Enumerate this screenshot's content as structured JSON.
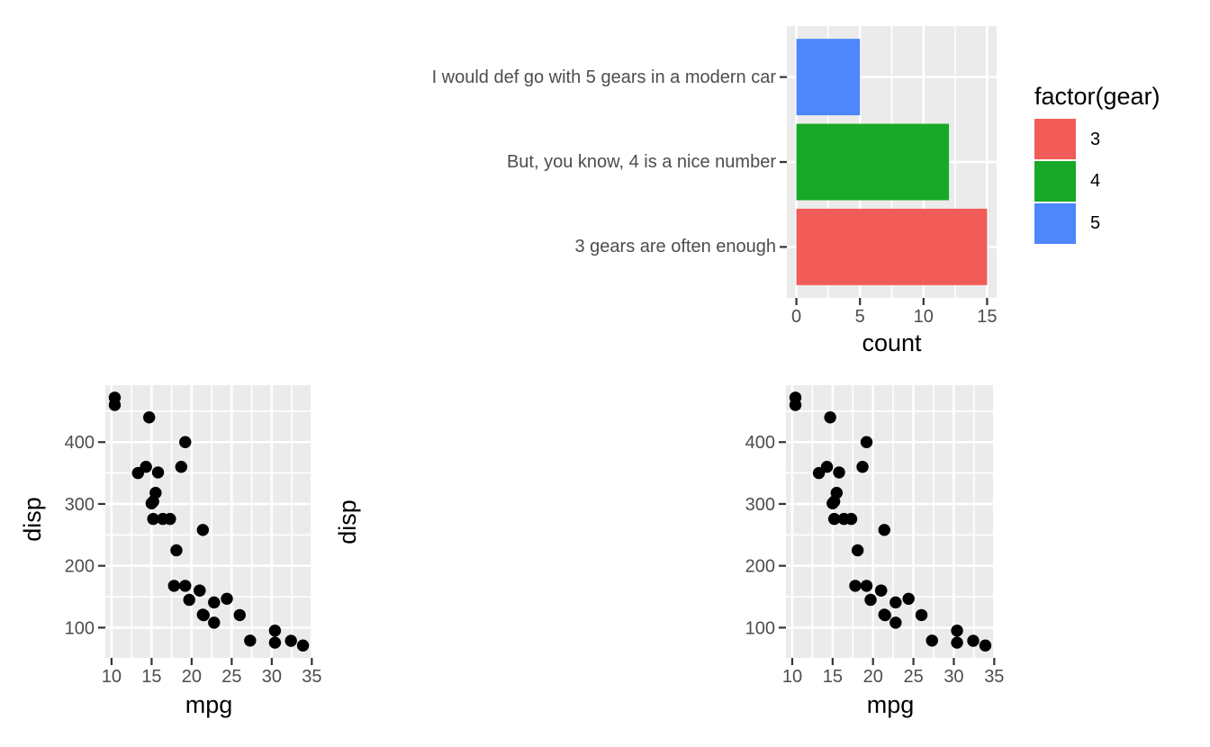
{
  "figure": {
    "background": "#FFFFFF",
    "theme": {
      "panel_bg": "#EBEBEB",
      "grid_color": "#FFFFFF",
      "tick_color": "#333333",
      "axis_text_color": "#4D4D4D",
      "title_color": "#000000",
      "point_color": "#000000"
    }
  },
  "chart_data": [
    {
      "id": "gear-bar-chart",
      "type": "bar",
      "orientation": "horizontal",
      "xlabel": "count",
      "categories": [
        "I would def go with 5 gears in a modern car",
        "But, you know, 4 is a nice number",
        "3 gears are often enough"
      ],
      "values": [
        5,
        12,
        15
      ],
      "bar_colors": [
        "#4E86FC",
        "#18A928",
        "#F25C58"
      ],
      "gears": [
        "5",
        "4",
        "3"
      ],
      "x_ticks": [
        0,
        5,
        10,
        15
      ],
      "x_minor": [
        2.5,
        7.5,
        12.5
      ],
      "xlim": [
        -0.75,
        15.75
      ],
      "grid": true,
      "legend": {
        "title": "factor(gear)",
        "position": "right",
        "entries": [
          {
            "label": "3",
            "color": "#F25C58"
          },
          {
            "label": "4",
            "color": "#18A928"
          },
          {
            "label": "5",
            "color": "#4E86FC"
          }
        ]
      }
    },
    {
      "id": "scatter-left",
      "type": "scatter",
      "xlabel": "mpg",
      "ylabel": "disp",
      "x_ticks": [
        10,
        15,
        20,
        25,
        30,
        35
      ],
      "y_ticks": [
        100,
        200,
        300,
        400
      ],
      "x_minor": [
        12.5,
        17.5,
        22.5,
        27.5,
        32.5
      ],
      "y_minor": [
        150,
        250,
        350,
        450
      ],
      "xlim": [
        9.225,
        35.075
      ],
      "ylim": [
        51.055,
        492.045
      ],
      "grid": true,
      "points": [
        [
          21.0,
          160.0
        ],
        [
          21.0,
          160.0
        ],
        [
          22.8,
          108.0
        ],
        [
          21.4,
          258.0
        ],
        [
          18.7,
          360.0
        ],
        [
          18.1,
          225.0
        ],
        [
          14.3,
          360.0
        ],
        [
          24.4,
          146.7
        ],
        [
          22.8,
          140.8
        ],
        [
          19.2,
          167.6
        ],
        [
          17.8,
          167.6
        ],
        [
          16.4,
          275.8
        ],
        [
          17.3,
          275.8
        ],
        [
          15.2,
          275.8
        ],
        [
          10.4,
          472.0
        ],
        [
          10.4,
          460.0
        ],
        [
          14.7,
          440.0
        ],
        [
          32.4,
          78.7
        ],
        [
          30.4,
          75.7
        ],
        [
          33.9,
          71.1
        ],
        [
          21.5,
          120.1
        ],
        [
          15.5,
          318.0
        ],
        [
          15.2,
          304.0
        ],
        [
          13.3,
          350.0
        ],
        [
          19.2,
          400.0
        ],
        [
          27.3,
          79.0
        ],
        [
          26.0,
          120.3
        ],
        [
          30.4,
          95.1
        ],
        [
          15.8,
          351.0
        ],
        [
          19.7,
          145.0
        ],
        [
          15.0,
          301.0
        ],
        [
          21.4,
          121.0
        ]
      ]
    },
    {
      "id": "scatter-right",
      "type": "scatter",
      "xlabel": "mpg",
      "ylabel": "disp",
      "x_ticks": [
        10,
        15,
        20,
        25,
        30,
        35
      ],
      "y_ticks": [
        100,
        200,
        300,
        400
      ],
      "x_minor": [
        12.5,
        17.5,
        22.5,
        27.5,
        32.5
      ],
      "y_minor": [
        150,
        250,
        350,
        450
      ],
      "xlim": [
        9.225,
        35.075
      ],
      "ylim": [
        51.055,
        492.045
      ],
      "grid": true,
      "points": [
        [
          21.0,
          160.0
        ],
        [
          21.0,
          160.0
        ],
        [
          22.8,
          108.0
        ],
        [
          21.4,
          258.0
        ],
        [
          18.7,
          360.0
        ],
        [
          18.1,
          225.0
        ],
        [
          14.3,
          360.0
        ],
        [
          24.4,
          146.7
        ],
        [
          22.8,
          140.8
        ],
        [
          19.2,
          167.6
        ],
        [
          17.8,
          167.6
        ],
        [
          16.4,
          275.8
        ],
        [
          17.3,
          275.8
        ],
        [
          15.2,
          275.8
        ],
        [
          10.4,
          472.0
        ],
        [
          10.4,
          460.0
        ],
        [
          14.7,
          440.0
        ],
        [
          32.4,
          78.7
        ],
        [
          30.4,
          75.7
        ],
        [
          33.9,
          71.1
        ],
        [
          21.5,
          120.1
        ],
        [
          15.5,
          318.0
        ],
        [
          15.2,
          304.0
        ],
        [
          13.3,
          350.0
        ],
        [
          19.2,
          400.0
        ],
        [
          27.3,
          79.0
        ],
        [
          26.0,
          120.3
        ],
        [
          30.4,
          95.1
        ],
        [
          15.8,
          351.0
        ],
        [
          19.7,
          145.0
        ],
        [
          15.0,
          301.0
        ],
        [
          21.4,
          121.0
        ]
      ]
    }
  ]
}
